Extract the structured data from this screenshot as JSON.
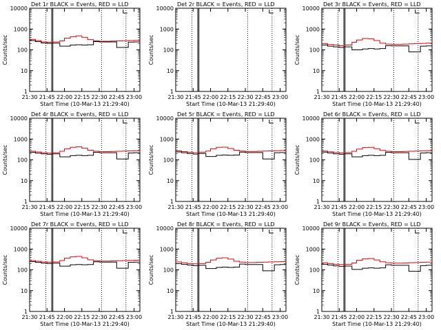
{
  "colors": {
    "events": "#000000",
    "lld": "#e8000b",
    "axis": "#000000",
    "background": "#ffffff"
  },
  "shared": {
    "ylabel": "Counts/sec",
    "xlabel": "Start Time (10-Mar-13 21:29:40)",
    "x_tick_labels": [
      "21:30",
      "21:45",
      "22:00",
      "22:15",
      "22:30",
      "22:45",
      "23:00"
    ],
    "y_tick_labels": [
      "1",
      "10",
      "100",
      "1000",
      "10000"
    ],
    "y_scale": "log",
    "ylim": [
      1,
      10000
    ],
    "xlim_minutes_after_2130": [
      0,
      95
    ],
    "line_style": "histogram-steps",
    "dotted_marker_minutes": [
      14,
      62,
      83
    ]
  },
  "chart_data": [
    {
      "type": "line",
      "title": "Det 1r BLACK = Events, RED = LLD",
      "series": [
        {
          "x_minutes": [
            0,
            5,
            10,
            15,
            19,
            26,
            30,
            35,
            40,
            45,
            50,
            55,
            60,
            65,
            70,
            75,
            80,
            85,
            90,
            95
          ],
          "values": [
            320,
            280,
            240,
            230,
            240,
            270,
            360,
            430,
            470,
            400,
            310,
            270,
            260,
            260,
            265,
            270,
            275,
            280,
            285,
            290
          ]
        },
        {
          "x_minutes": [
            0,
            5,
            10,
            15,
            19,
            26,
            30,
            35,
            40,
            45,
            50,
            55,
            60,
            65,
            70,
            75,
            80,
            85,
            90,
            95
          ],
          "values": [
            280,
            250,
            215,
            205,
            210,
            150,
            150,
            170,
            175,
            170,
            175,
            250,
            240,
            240,
            240,
            130,
            130,
            235,
            240,
            250
          ]
        }
      ]
    },
    {
      "type": "line",
      "title": "Det 2r BLACK = Events, RED = LLD",
      "series": [
        {
          "x_minutes": [
            0,
            95
          ],
          "values": [
            null,
            null
          ]
        },
        {
          "x_minutes": [
            0,
            95
          ],
          "values": [
            null,
            null
          ]
        }
      ]
    },
    {
      "type": "line",
      "title": "Det 3r BLACK = Events, RED = LLD",
      "series": [
        {
          "x_minutes": [
            0,
            5,
            10,
            15,
            19,
            26,
            30,
            35,
            40,
            45,
            50,
            55,
            60,
            65,
            70,
            75,
            80,
            85,
            90,
            95
          ],
          "values": [
            200,
            180,
            170,
            160,
            170,
            230,
            300,
            350,
            340,
            280,
            210,
            190,
            185,
            185,
            190,
            195,
            200,
            205,
            210,
            215
          ]
        },
        {
          "x_minutes": [
            0,
            5,
            10,
            15,
            19,
            26,
            30,
            35,
            40,
            45,
            50,
            55,
            60,
            65,
            70,
            75,
            80,
            85,
            90,
            95
          ],
          "values": [
            170,
            150,
            140,
            130,
            140,
            100,
            100,
            110,
            115,
            110,
            115,
            160,
            155,
            155,
            155,
            80,
            80,
            150,
            155,
            160
          ]
        }
      ]
    },
    {
      "type": "line",
      "title": "Det 4r BLACK = Events, RED = LLD",
      "series": [
        {
          "x_minutes": [
            0,
            5,
            10,
            15,
            19,
            26,
            30,
            35,
            40,
            45,
            50,
            55,
            60,
            65,
            70,
            75,
            80,
            85,
            90,
            95
          ],
          "values": [
            260,
            240,
            220,
            210,
            220,
            260,
            340,
            400,
            420,
            360,
            290,
            260,
            250,
            250,
            255,
            260,
            265,
            270,
            275,
            280
          ]
        },
        {
          "x_minutes": [
            0,
            5,
            10,
            15,
            19,
            26,
            30,
            35,
            40,
            45,
            50,
            55,
            60,
            65,
            70,
            75,
            80,
            85,
            90,
            95
          ],
          "values": [
            230,
            210,
            195,
            185,
            195,
            140,
            140,
            160,
            165,
            160,
            165,
            230,
            220,
            220,
            220,
            110,
            110,
            215,
            220,
            230
          ]
        }
      ]
    },
    {
      "type": "line",
      "title": "Det 5r BLACK = Events, RED = LLD",
      "series": [
        {
          "x_minutes": [
            0,
            5,
            10,
            15,
            19,
            26,
            30,
            35,
            40,
            45,
            50,
            55,
            60,
            65,
            70,
            75,
            80,
            85,
            90,
            95
          ],
          "values": [
            270,
            250,
            230,
            220,
            230,
            265,
            340,
            400,
            410,
            350,
            290,
            265,
            255,
            255,
            260,
            265,
            270,
            275,
            280,
            285
          ]
        },
        {
          "x_minutes": [
            0,
            5,
            10,
            15,
            19,
            26,
            30,
            35,
            40,
            45,
            50,
            55,
            60,
            65,
            70,
            75,
            80,
            85,
            90,
            95
          ],
          "values": [
            240,
            220,
            200,
            190,
            200,
            145,
            145,
            165,
            170,
            165,
            170,
            235,
            225,
            225,
            225,
            110,
            110,
            220,
            225,
            235
          ]
        }
      ]
    },
    {
      "type": "line",
      "title": "Det 6r BLACK = Events, RED = LLD",
      "series": [
        {
          "x_minutes": [
            0,
            5,
            10,
            15,
            19,
            26,
            30,
            35,
            40,
            45,
            50,
            55,
            60,
            65,
            70,
            75,
            80,
            85,
            90,
            95
          ],
          "values": [
            265,
            245,
            225,
            215,
            225,
            260,
            330,
            390,
            400,
            345,
            285,
            260,
            250,
            250,
            255,
            260,
            265,
            270,
            275,
            280
          ]
        },
        {
          "x_minutes": [
            0,
            5,
            10,
            15,
            19,
            26,
            30,
            35,
            40,
            45,
            50,
            55,
            60,
            65,
            70,
            75,
            80,
            85,
            90,
            95
          ],
          "values": [
            235,
            215,
            195,
            185,
            195,
            140,
            140,
            160,
            165,
            160,
            165,
            230,
            220,
            220,
            220,
            105,
            105,
            215,
            220,
            230
          ]
        }
      ]
    },
    {
      "type": "line",
      "title": "Det 7r BLACK = Events, RED = LLD",
      "series": [
        {
          "x_minutes": [
            0,
            5,
            10,
            15,
            19,
            26,
            30,
            35,
            40,
            45,
            50,
            55,
            60,
            65,
            70,
            75,
            80,
            85,
            90,
            95
          ],
          "values": [
            280,
            260,
            240,
            230,
            240,
            280,
            360,
            420,
            440,
            380,
            305,
            275,
            265,
            265,
            270,
            275,
            280,
            285,
            290,
            295
          ]
        },
        {
          "x_minutes": [
            0,
            5,
            10,
            15,
            19,
            26,
            30,
            35,
            40,
            45,
            50,
            55,
            60,
            65,
            70,
            75,
            80,
            85,
            90,
            95
          ],
          "values": [
            250,
            230,
            210,
            200,
            210,
            150,
            150,
            175,
            180,
            175,
            180,
            245,
            235,
            235,
            235,
            120,
            120,
            230,
            235,
            245
          ]
        }
      ]
    },
    {
      "type": "line",
      "title": "Det 8r BLACK = Events, RED = LLD",
      "series": [
        {
          "x_minutes": [
            0,
            5,
            10,
            15,
            19,
            26,
            30,
            35,
            40,
            45,
            50,
            55,
            60,
            65,
            70,
            75,
            80,
            85,
            90,
            95
          ],
          "values": [
            240,
            220,
            200,
            195,
            200,
            230,
            300,
            360,
            380,
            330,
            260,
            235,
            225,
            225,
            230,
            235,
            240,
            245,
            250,
            255
          ]
        },
        {
          "x_minutes": [
            0,
            5,
            10,
            15,
            19,
            26,
            30,
            35,
            40,
            45,
            50,
            55,
            60,
            65,
            70,
            75,
            80,
            85,
            90,
            95
          ],
          "values": [
            200,
            185,
            170,
            160,
            165,
            115,
            115,
            130,
            135,
            130,
            135,
            190,
            180,
            180,
            180,
            90,
            90,
            175,
            180,
            190
          ]
        }
      ]
    },
    {
      "type": "line",
      "title": "Det 9r BLACK = Events, RED = LLD",
      "series": [
        {
          "x_minutes": [
            0,
            5,
            10,
            15,
            19,
            26,
            30,
            35,
            40,
            45,
            50,
            55,
            60,
            65,
            70,
            75,
            80,
            85,
            90,
            95
          ],
          "values": [
            220,
            200,
            185,
            180,
            185,
            215,
            290,
            340,
            350,
            300,
            245,
            220,
            210,
            210,
            215,
            220,
            225,
            230,
            235,
            240
          ]
        },
        {
          "x_minutes": [
            0,
            5,
            10,
            15,
            19,
            26,
            30,
            35,
            40,
            45,
            50,
            55,
            60,
            65,
            70,
            75,
            80,
            85,
            90,
            95
          ],
          "values": [
            185,
            170,
            155,
            148,
            152,
            105,
            105,
            120,
            125,
            120,
            125,
            175,
            165,
            165,
            165,
            85,
            85,
            160,
            165,
            175
          ]
        }
      ]
    }
  ]
}
